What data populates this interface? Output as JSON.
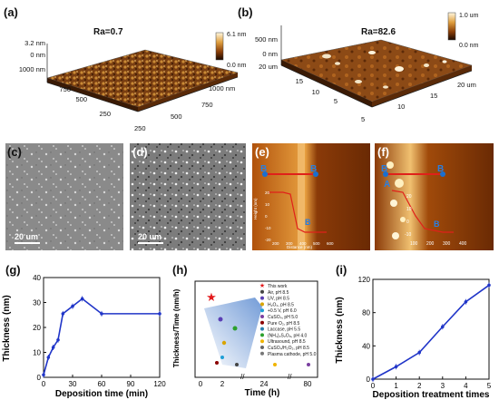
{
  "figure": {
    "panel_labels": {
      "a": "(a)",
      "b": "(b)",
      "c": "(c)",
      "d": "(d)",
      "e": "(e)",
      "f": "(f)",
      "g": "(g)",
      "h": "(h)",
      "i": "(i)"
    }
  },
  "afm_a": {
    "ra": "Ra=0.7",
    "z_tick_top": "3.2 nm",
    "z_tick_mid": "0 nm",
    "y_tick_1000": "1000 nm",
    "y_tick_750": "750",
    "y_tick_500": "500",
    "y_tick_250": "250",
    "x_tick_250": "250",
    "x_tick_500": "500",
    "x_tick_750": "750",
    "x_tick_1000": "1000 nm",
    "scale_max": "6.1 nm",
    "scale_min": "0.0 nm"
  },
  "afm_b": {
    "ra": "Ra=82.6",
    "z_tick_top": "500 nm",
    "z_tick_mid": "0 nm",
    "y_tick_20": "20 um",
    "y_tick_15": "15",
    "y_tick_10": "10",
    "y_tick_5": "5",
    "x_tick_5": "5",
    "x_tick_10": "10",
    "x_tick_15": "15",
    "x_tick_20": "20 um",
    "scale_max": "1.0 um",
    "scale_min": "0.0 nm"
  },
  "sem_c": {
    "scale": "20 um"
  },
  "sem_d": {
    "scale": "20 um"
  },
  "afm_e": {
    "marker_left": "B",
    "marker_right": "B",
    "marker_bottom": "B",
    "y_axis": "Height (nm)",
    "y_ticks": [
      "20",
      "10",
      "0",
      "-10",
      "-20"
    ],
    "x_ticks": [
      "200",
      "300",
      "400",
      "500",
      "600"
    ],
    "x_axis": "Distance (nm)"
  },
  "afm_f": {
    "marker_left": "B",
    "marker_right": "B",
    "marker_a": "A",
    "marker_bottom": "B",
    "y_ticks": [
      "20",
      "10",
      "0",
      "-10"
    ],
    "x_ticks": [
      "100",
      "200",
      "300",
      "400"
    ]
  },
  "chart_g": {
    "ylabel": "Thickness (nm)",
    "xlabel": "Deposition time (min)",
    "x_ticks": [
      "0",
      "30",
      "60",
      "90",
      "120"
    ],
    "y_ticks": [
      "0",
      "10",
      "20",
      "30",
      "40"
    ]
  },
  "chart_h": {
    "ylabel": "Thickness/Time (nm/h)",
    "xlabel": "Time (h)",
    "x_ticks": [
      "0",
      "2",
      "24",
      "80"
    ],
    "legend": [
      "This work",
      "Air, pH 8.5",
      "UV, pH 8.5",
      "H₂O₂, pH 8.5",
      "+0.5 V, pH 6.0",
      "CuSO₄, pH 5.0",
      "Pure O₂, pH 8.5",
      "Laccase, pH 5.5",
      "(NH₄)₂S₂O₈, pH 4.0",
      "Ultrasound, pH 8.5",
      "CuSO₄/H₂O₂, pH 8.5",
      "Plasma cathode, pH 5.0"
    ],
    "legend_colors": [
      "#e31a1c",
      "#444444",
      "#5a3fb5",
      "#d9a400",
      "#1f9fd6",
      "#7a3fa0",
      "#8b0000",
      "#2a7fb0",
      "#2ca02c",
      "#f0b400",
      "#666666",
      "#777777"
    ]
  },
  "chart_i": {
    "ylabel": "Thickness (nm)",
    "xlabel": "Deposition treatment times",
    "x_ticks": [
      "0",
      "1",
      "2",
      "3",
      "4",
      "5"
    ],
    "y_ticks": [
      "0",
      "40",
      "80",
      "120"
    ]
  },
  "chart_data": [
    {
      "type": "line",
      "panel": "g",
      "xlabel": "Deposition time (min)",
      "ylabel": "Thickness (nm)",
      "xlim": [
        0,
        120
      ],
      "ylim": [
        0,
        40
      ],
      "x": [
        0,
        5,
        10,
        15,
        20,
        30,
        40,
        60,
        120
      ],
      "values": [
        1,
        8,
        12,
        15,
        25.5,
        28.5,
        31.5,
        25.5,
        25.5
      ]
    },
    {
      "type": "line",
      "panel": "i",
      "xlabel": "Deposition treatment times",
      "ylabel": "Thickness (nm)",
      "xlim": [
        0,
        5
      ],
      "ylim": [
        0,
        120
      ],
      "x": [
        0,
        1,
        2,
        3,
        4,
        5
      ],
      "values": [
        0,
        15,
        32,
        63,
        93,
        113
      ]
    }
  ]
}
